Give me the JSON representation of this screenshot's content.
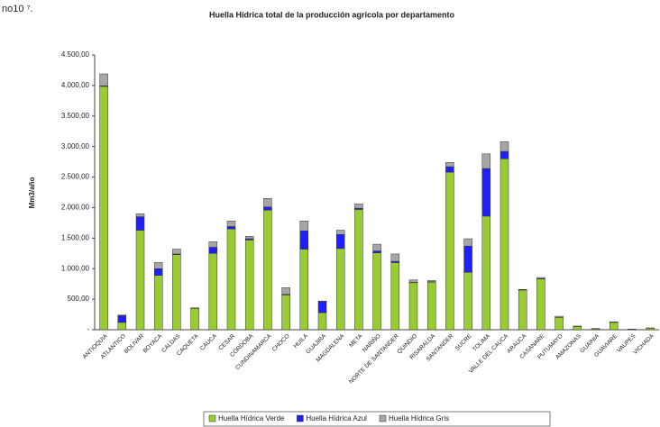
{
  "corner_text": "no10 ⁷.",
  "chart_data": {
    "type": "stacked_bar",
    "title": "Huella Hídrica total de la producción agrícola por departamento",
    "ylabel": "Mm3/año",
    "categories": [
      "ANTIOQUIA",
      "ATLANTICO",
      "BOLIVAR",
      "BOYACA",
      "CALDAS",
      "CAQUETA",
      "CAUCA",
      "CESAR",
      "CORDOBA",
      "CUNDINAMARCA",
      "CHOCO",
      "HUILA",
      "GUAJIRA",
      "MAGDALENA",
      "META",
      "NARIÑO",
      "NORTE DE SANTANDER",
      "QUINDIO",
      "RISARALDA",
      "SANTANDER",
      "SUCRE",
      "TOLIMA",
      "VALLE DEL CAUCA",
      "ARAUCA",
      "CASANARE",
      "PUTUMAYO",
      "AMAZONAS",
      "GUAINIA",
      "GUAVIARE",
      "VAUPES",
      "VICHADA"
    ],
    "series": [
      {
        "name": "Huella Hídrica Verde",
        "color": "#99cc33",
        "values": [
          3985,
          120,
          1630,
          890,
          1230,
          350,
          1250,
          1650,
          1470,
          1960,
          570,
          1320,
          280,
          1330,
          1970,
          1260,
          1100,
          770,
          780,
          2580,
          940,
          1860,
          2800,
          650,
          830,
          200,
          50,
          15,
          120,
          8,
          25
        ]
      },
      {
        "name": "Huella Hídrica Azul",
        "color": "#1f1fff",
        "values": [
          10,
          110,
          220,
          110,
          10,
          0,
          100,
          40,
          20,
          50,
          10,
          300,
          180,
          230,
          20,
          30,
          20,
          5,
          5,
          90,
          430,
          780,
          120,
          5,
          5,
          0,
          0,
          0,
          0,
          0,
          0
        ]
      },
      {
        "name": "Huella Hídrica Gris",
        "color": "#a6a6a6",
        "values": [
          195,
          10,
          50,
          100,
          80,
          10,
          90,
          90,
          40,
          140,
          110,
          160,
          10,
          70,
          70,
          110,
          120,
          40,
          20,
          70,
          120,
          240,
          160,
          5,
          20,
          20,
          10,
          5,
          10,
          2,
          5
        ]
      }
    ],
    "ylim": [
      0,
      4500
    ],
    "yticks": [
      {
        "value": 0,
        "label": "-"
      },
      {
        "value": 500,
        "label": "500,00"
      },
      {
        "value": 1000,
        "label": "1.000,00"
      },
      {
        "value": 1500,
        "label": "1.500,00"
      },
      {
        "value": 2000,
        "label": "2.000,00"
      },
      {
        "value": 2500,
        "label": "2.500,00"
      },
      {
        "value": 3000,
        "label": "3.000,00"
      },
      {
        "value": 3500,
        "label": "3.500,00"
      },
      {
        "value": 4000,
        "label": "4.000,00"
      },
      {
        "value": 4500,
        "label": "4.500,00"
      }
    ],
    "legend": "bottom"
  }
}
